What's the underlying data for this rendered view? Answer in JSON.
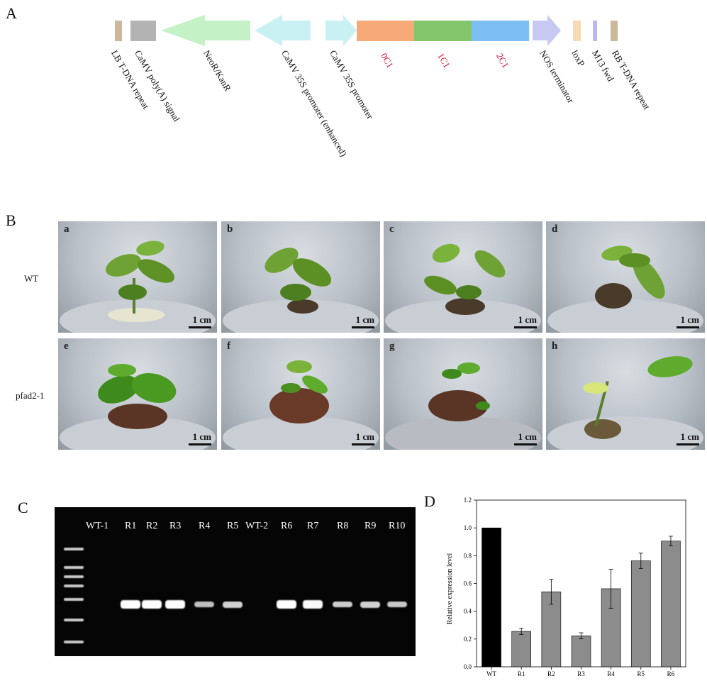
{
  "panel_letters": {
    "a": "A",
    "b": "B",
    "c": "C",
    "d": "D"
  },
  "construct_map": {
    "features": [
      {
        "name": "LB T-DNA repeat",
        "color": "#cdb89a",
        "shape": "box"
      },
      {
        "name": "CaMV poly(A) signal",
        "color": "#b3b3b3",
        "shape": "box"
      },
      {
        "name": "NeoR/KanR",
        "color": "#c5f1c7",
        "shape": "arrow-left"
      },
      {
        "name": "CaMV 35S promoter (enhanced)",
        "color": "#c9f1f3",
        "shape": "arrow-left"
      },
      {
        "name": "CaMV 35S promoter",
        "color": "#c9f1f3",
        "shape": "arrow-right"
      },
      {
        "name": "0C1",
        "color": "#f7a978",
        "shape": "box",
        "label_color": "#e0103a"
      },
      {
        "name": "1C1",
        "color": "#84c66b",
        "shape": "box",
        "label_color": "#e0103a"
      },
      {
        "name": "2C1",
        "color": "#7ebff3",
        "shape": "box",
        "label_color": "#e0103a"
      },
      {
        "name": "NOS terminator",
        "color": "#c7c9f3",
        "shape": "arrow-right"
      },
      {
        "name": "loxP",
        "color": "#f6dbb4",
        "shape": "box"
      },
      {
        "name": "M13 fwd",
        "color": "#b9b9f2",
        "shape": "box"
      },
      {
        "name": "RB T-DNA repeat",
        "color": "#cdb89a",
        "shape": "box"
      }
    ]
  },
  "photos": {
    "row_labels": [
      "WT",
      "pfad2-1"
    ],
    "scale_label": "1 cm",
    "items": [
      {
        "tag": "a"
      },
      {
        "tag": "b"
      },
      {
        "tag": "c"
      },
      {
        "tag": "d"
      },
      {
        "tag": "e"
      },
      {
        "tag": "f"
      },
      {
        "tag": "g"
      },
      {
        "tag": "h"
      }
    ]
  },
  "gel": {
    "lanes": [
      {
        "label": "WT-1",
        "band": 0
      },
      {
        "label": "R1",
        "band": 1.0
      },
      {
        "label": "R2",
        "band": 1.0
      },
      {
        "label": "R3",
        "band": 1.0
      },
      {
        "label": "R4",
        "band": 0.45
      },
      {
        "label": "R5",
        "band": 0.6
      },
      {
        "label": "WT-2",
        "band": 0
      },
      {
        "label": "R6",
        "band": 1.0
      },
      {
        "label": "R7",
        "band": 0.95
      },
      {
        "label": "R8",
        "band": 0.55
      },
      {
        "label": "R9",
        "band": 0.6
      },
      {
        "label": "R10",
        "band": 0.5
      }
    ]
  },
  "chart_data": {
    "type": "bar",
    "categories": [
      "WT",
      "R1",
      "R2",
      "R3",
      "R4",
      "R5",
      "R6"
    ],
    "values": [
      1.0,
      0.255,
      0.54,
      0.223,
      0.562,
      0.763,
      0.905
    ],
    "errors": [
      0,
      0.022,
      0.09,
      0.022,
      0.14,
      0.055,
      0.035
    ],
    "colors": [
      "#000000",
      "#8c8c8c",
      "#8c8c8c",
      "#8c8c8c",
      "#8c8c8c",
      "#8c8c8c",
      "#8c8c8c"
    ],
    "title": "",
    "xlabel": "",
    "ylabel": "Relative expression level",
    "ylim": [
      0.0,
      1.2
    ],
    "yticks": [
      "0.0",
      "0.2",
      "0.4",
      "0.6",
      "0.8",
      "1.0",
      "1.2"
    ],
    "grid": false
  }
}
